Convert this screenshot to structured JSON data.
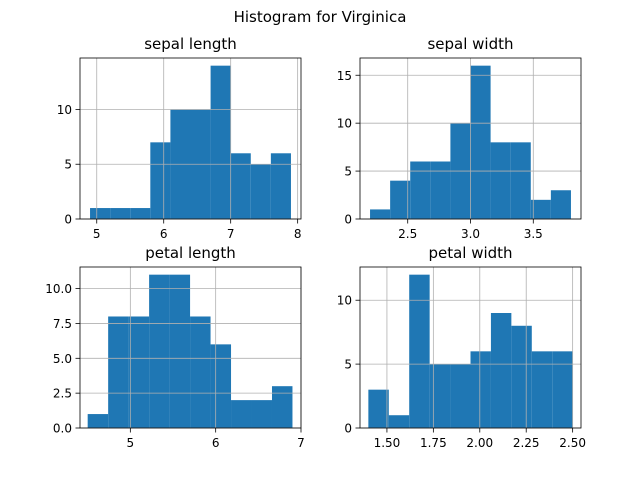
{
  "title": "Histogram for Virginica",
  "colors": {
    "bar": "#1f77b4",
    "grid": "#b0b0b0",
    "axis": "#000000"
  },
  "chart_data": [
    {
      "type": "bar",
      "title": "sepal length",
      "grid": true,
      "xlim": [
        4.75,
        8.05
      ],
      "ylim": [
        0,
        14.7
      ],
      "bin_edges": [
        4.9,
        5.2,
        5.5,
        5.8,
        6.1,
        6.4,
        6.7,
        7.0,
        7.3,
        7.6,
        7.9
      ],
      "values": [
        1,
        1,
        1,
        7,
        10,
        10,
        14,
        6,
        5,
        6
      ],
      "xticks": [
        5,
        6,
        7,
        8
      ],
      "xtick_labels": [
        "5",
        "6",
        "7",
        "8"
      ],
      "yticks": [
        0,
        5,
        10
      ],
      "ytick_labels": [
        "0",
        "5",
        "10"
      ]
    },
    {
      "type": "bar",
      "title": "sepal width",
      "grid": true,
      "xlim": [
        2.12,
        3.88
      ],
      "ylim": [
        0,
        16.8
      ],
      "bin_edges": [
        2.2,
        2.36,
        2.52,
        2.68,
        2.84,
        3.0,
        3.16,
        3.32,
        3.48,
        3.64,
        3.8
      ],
      "values": [
        1,
        4,
        6,
        6,
        10,
        16,
        8,
        8,
        2,
        3
      ],
      "xticks": [
        2.5,
        3.0,
        3.5
      ],
      "xtick_labels": [
        "2.5",
        "3.0",
        "3.5"
      ],
      "yticks": [
        0,
        5,
        10,
        15
      ],
      "ytick_labels": [
        "0",
        "5",
        "10",
        "15"
      ]
    },
    {
      "type": "bar",
      "title": "petal length",
      "grid": true,
      "xlim": [
        4.41,
        7.0
      ],
      "ylim": [
        0,
        11.55
      ],
      "bin_edges": [
        4.5,
        4.74,
        4.98,
        5.22,
        5.46,
        5.7,
        5.94,
        6.18,
        6.42,
        6.66,
        6.9
      ],
      "values": [
        1,
        8,
        8,
        11,
        11,
        8,
        6,
        2,
        2,
        3
      ],
      "xticks": [
        5,
        6,
        7
      ],
      "xtick_labels": [
        "5",
        "6",
        "7"
      ],
      "yticks": [
        0,
        2.5,
        5.0,
        7.5,
        10.0
      ],
      "ytick_labels": [
        "0.0",
        "2.5",
        "5.0",
        "7.5",
        "10.0"
      ]
    },
    {
      "type": "bar",
      "title": "petal width",
      "grid": true,
      "xlim": [
        1.355,
        2.545
      ],
      "ylim": [
        0,
        12.6
      ],
      "bin_edges": [
        1.4,
        1.51,
        1.62,
        1.73,
        1.84,
        1.95,
        2.06,
        2.17,
        2.28,
        2.39,
        2.5
      ],
      "values": [
        3,
        1,
        12,
        5,
        5,
        6,
        9,
        8,
        6,
        6
      ],
      "xticks": [
        1.5,
        1.75,
        2.0,
        2.25,
        2.5
      ],
      "xtick_labels": [
        "1.50",
        "1.75",
        "2.00",
        "2.25",
        "2.50"
      ],
      "yticks": [
        0,
        5,
        10
      ],
      "ytick_labels": [
        "0",
        "5",
        "10"
      ]
    }
  ]
}
